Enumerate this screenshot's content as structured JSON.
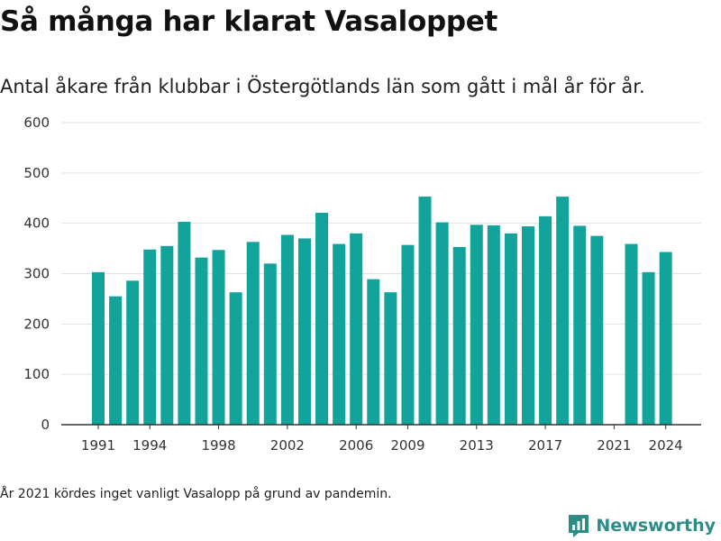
{
  "header": {
    "title": "Så många har klarat Vasaloppet",
    "subtitle": "Antal åkare från klubbar i Östergötlands län som gått i mål år för år."
  },
  "footer": {
    "note": "År 2021 kördes inget vanligt Vasalopp på grund av pandemin.",
    "brand": "Newsworthy"
  },
  "colors": {
    "bar": "#12a39a",
    "grid": "#e2e2e2",
    "axis": "#333333",
    "brand": "#2b8c88"
  },
  "chart_data": {
    "type": "bar",
    "title": "Så många har klarat Vasaloppet",
    "subtitle": "Antal åkare från klubbar i Östergötlands län som gått i mål år för år.",
    "xlabel": "",
    "ylabel": "",
    "categories": [
      1991,
      1992,
      1993,
      1994,
      1995,
      1996,
      1997,
      1998,
      1999,
      2000,
      2001,
      2002,
      2003,
      2004,
      2005,
      2006,
      2007,
      2008,
      2009,
      2010,
      2011,
      2012,
      2013,
      2014,
      2015,
      2016,
      2017,
      2018,
      2019,
      2020,
      2021,
      2022,
      2023,
      2024
    ],
    "values": [
      303,
      255,
      286,
      348,
      355,
      403,
      332,
      347,
      263,
      363,
      320,
      377,
      370,
      421,
      359,
      380,
      289,
      263,
      357,
      453,
      402,
      353,
      397,
      396,
      380,
      394,
      414,
      453,
      395,
      375,
      null,
      359,
      303,
      343
    ],
    "x_tick_labels": [
      "1991",
      "1994",
      "1998",
      "2002",
      "2006",
      "2009",
      "2013",
      "2017",
      "2021",
      "2024"
    ],
    "y_ticks": [
      0,
      100,
      200,
      300,
      400,
      500,
      600
    ],
    "ylim": [
      0,
      600
    ],
    "grid": true,
    "legend": "none"
  }
}
